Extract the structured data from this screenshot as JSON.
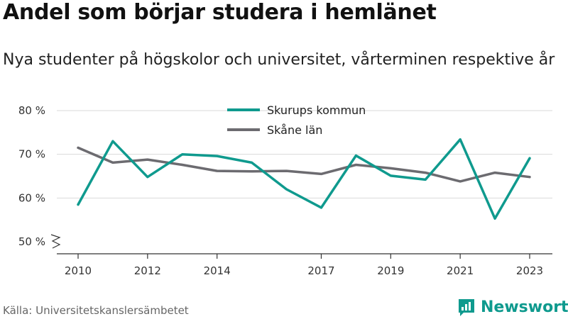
{
  "title": "Andel som börjar studera i hemlänet",
  "subtitle": "Nya studenter på högskolor och universitet, vårterminen respektive år",
  "source": "Källa: Universitetskanslersämbetet",
  "brand": "Newsworthy",
  "colors": {
    "series1": "#0f9a8e",
    "series2": "#6c6b70",
    "grid": "#d9d9d9",
    "brand": "#0f9a8e"
  },
  "chart_data": {
    "type": "line",
    "x": [
      2010,
      2011,
      2012,
      2013,
      2014,
      2015,
      2016,
      2017,
      2018,
      2019,
      2020,
      2021,
      2022,
      2023
    ],
    "series": [
      {
        "name": "Skurups kommun",
        "values": [
          58.5,
          73,
          64.8,
          70,
          69.6,
          68.1,
          62,
          57.8,
          69.7,
          65.1,
          64.2,
          73.4,
          55.3,
          69.1
        ]
      },
      {
        "name": "Skåne län",
        "values": [
          71.5,
          68.1,
          68.8,
          67.6,
          66.2,
          66.1,
          66.2,
          65.5,
          67.6,
          66.8,
          65.8,
          63.8,
          65.8,
          64.8
        ]
      }
    ],
    "y_ticks": [
      50,
      60,
      70,
      80
    ],
    "y_tick_labels": [
      "50 %",
      "60 %",
      "70 %",
      "80 %"
    ],
    "x_ticks": [
      2010,
      2012,
      2014,
      2017,
      2019,
      2021,
      2023
    ],
    "x_tick_labels": [
      "2010",
      "2012",
      "2014",
      "2017",
      "2019",
      "2021",
      "2023"
    ],
    "ylim": [
      50,
      80
    ],
    "grid": true,
    "axis_break": true,
    "legend_position": "top-center",
    "title": "Andel som börjar studera i hemlänet",
    "xlabel": "",
    "ylabel": ""
  }
}
